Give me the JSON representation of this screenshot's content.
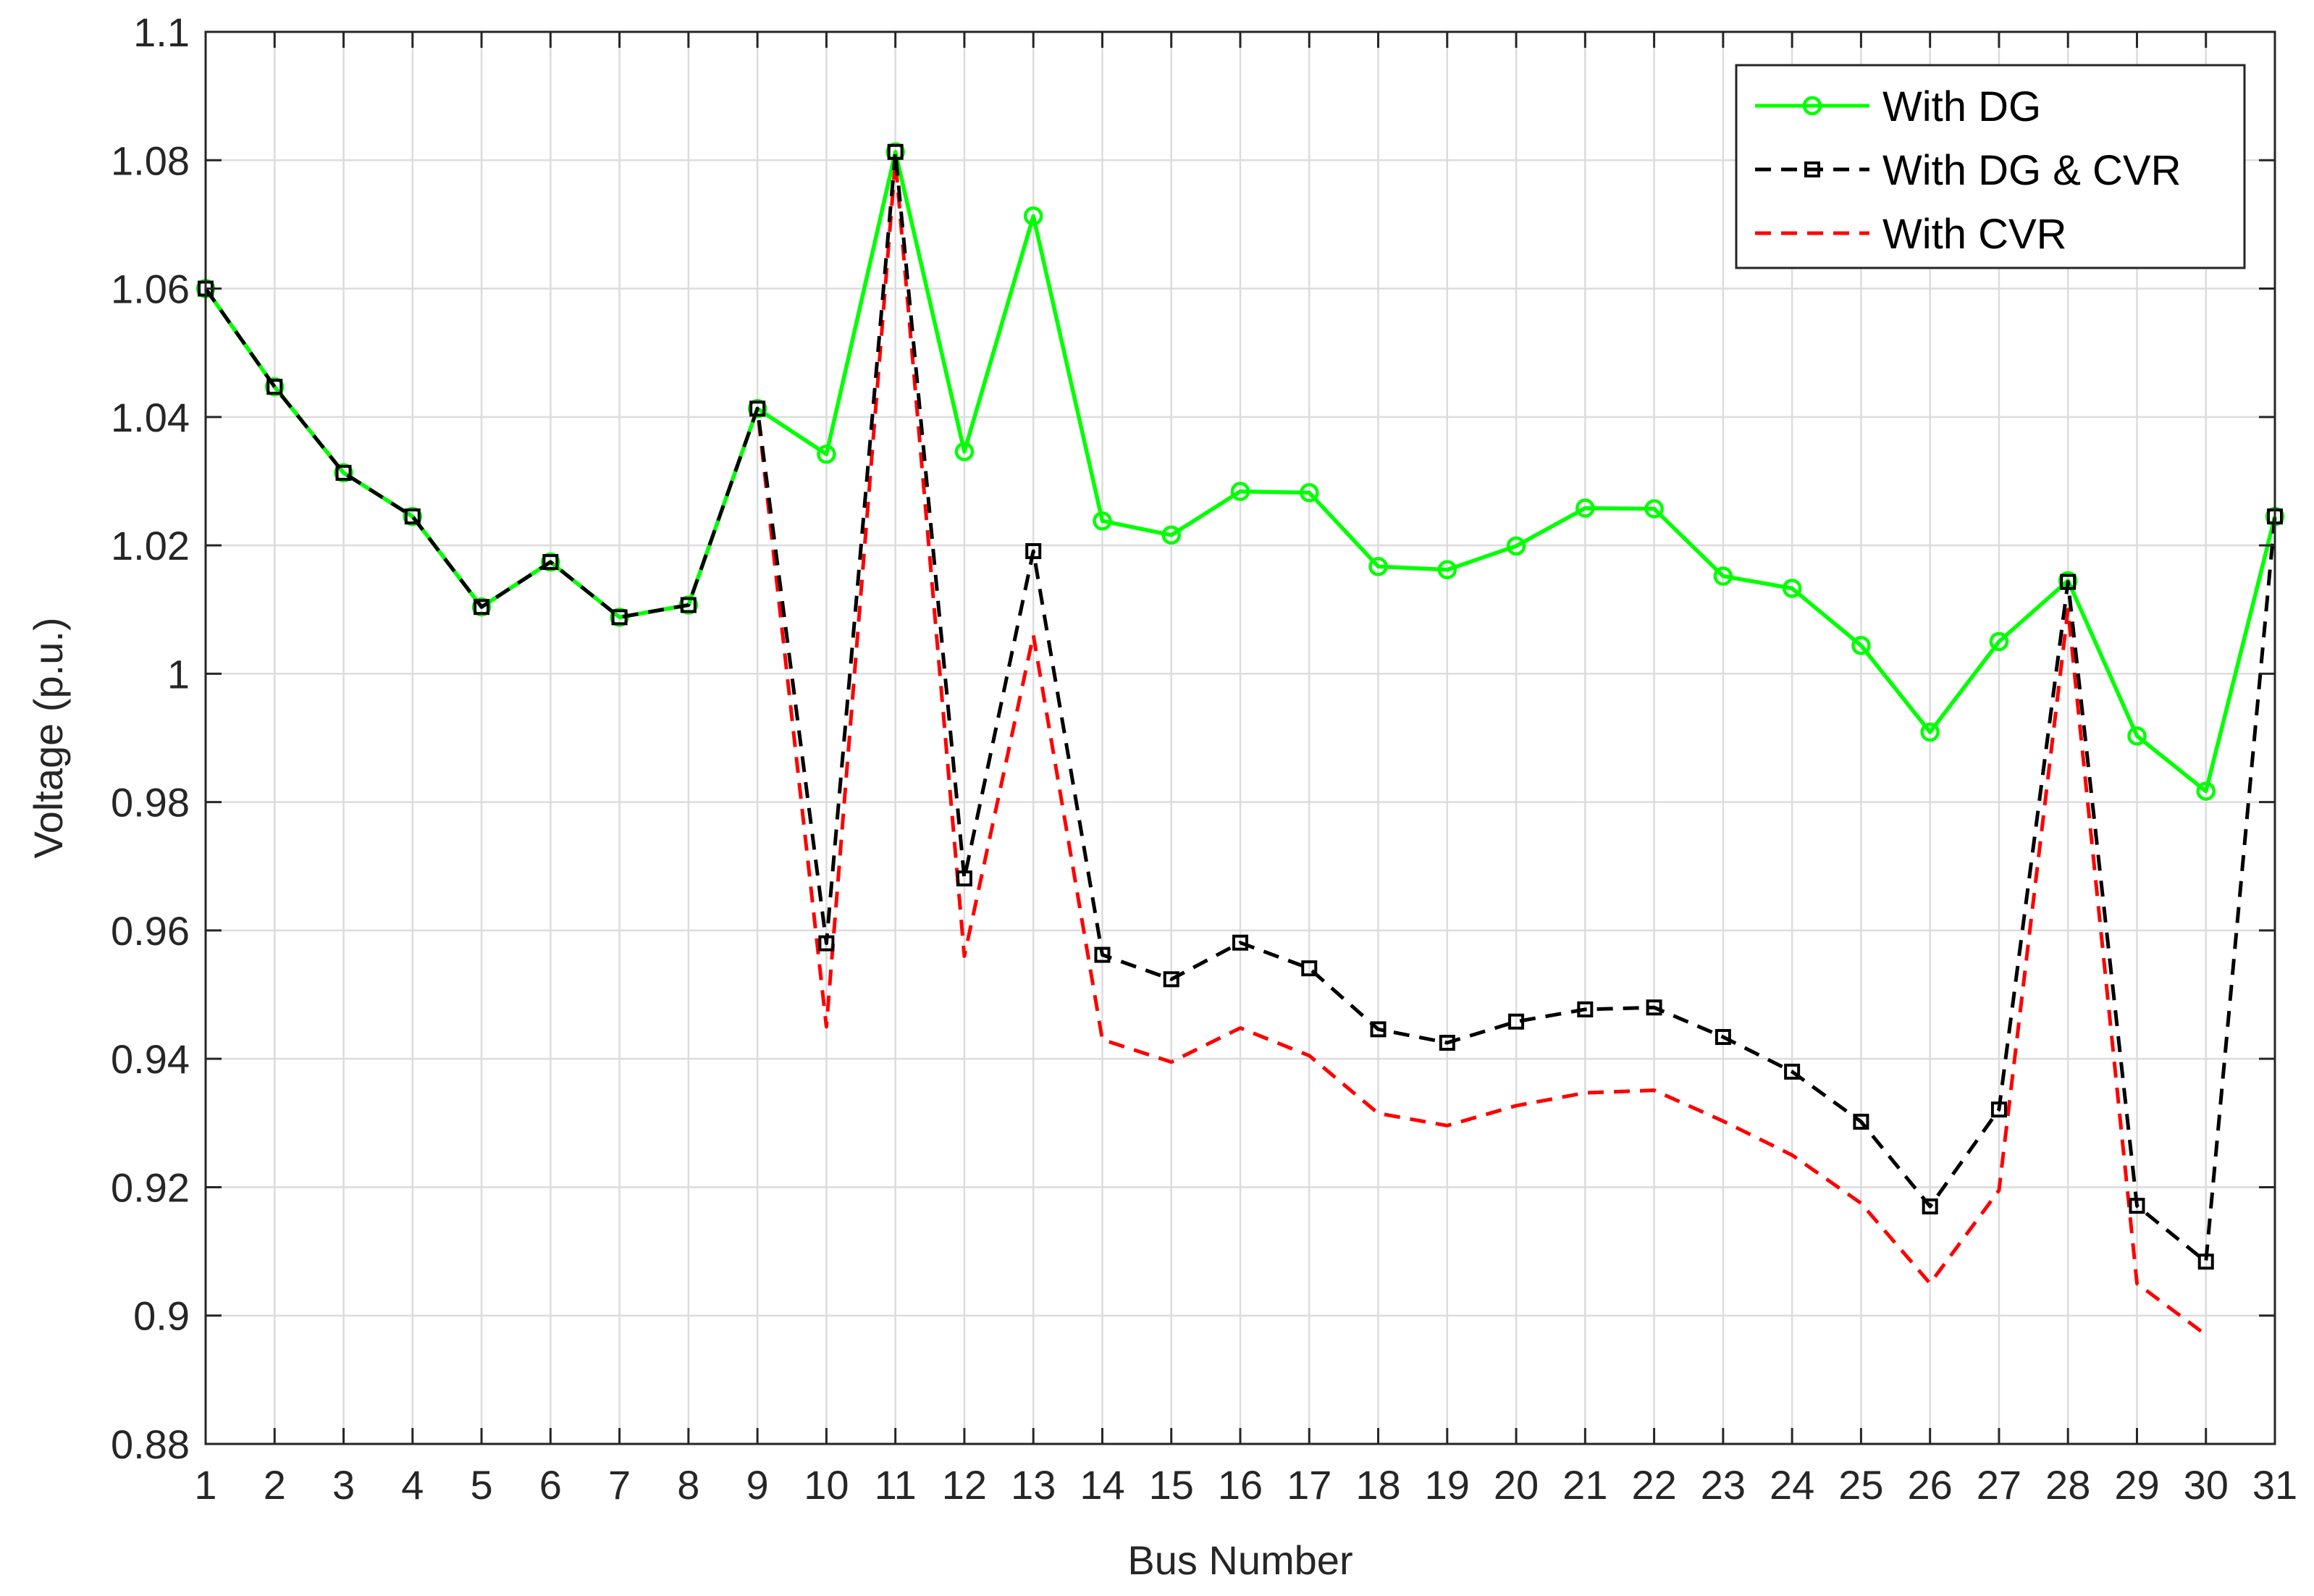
{
  "chart_data": {
    "type": "line",
    "title": "",
    "xlabel": "Bus Number",
    "ylabel": "Voltage (p.u.)",
    "x": [
      1,
      2,
      3,
      4,
      5,
      6,
      7,
      8,
      9,
      10,
      11,
      12,
      13,
      14,
      15,
      16,
      17,
      18,
      19,
      20,
      21,
      22,
      23,
      24,
      25,
      26,
      27,
      28,
      29,
      30,
      31
    ],
    "xlim": [
      1,
      31
    ],
    "ylim": [
      0.88,
      1.1
    ],
    "xticks": [
      "1",
      "2",
      "3",
      "4",
      "5",
      "6",
      "7",
      "8",
      "9",
      "10",
      "11",
      "12",
      "13",
      "14",
      "15",
      "16",
      "17",
      "18",
      "19",
      "20",
      "21",
      "22",
      "23",
      "24",
      "25",
      "26",
      "27",
      "28",
      "29",
      "30",
      "31"
    ],
    "yticks": [
      "0.88",
      "0.9",
      "0.92",
      "0.94",
      "0.96",
      "0.98",
      "1",
      "1.02",
      "1.04",
      "1.06",
      "1.08",
      "1.1"
    ],
    "yticks_values": [
      0.88,
      0.9,
      0.92,
      0.94,
      0.96,
      0.98,
      1.0,
      1.02,
      1.04,
      1.06,
      1.08,
      1.1
    ],
    "grid": true,
    "legend_position": "top-right",
    "series": [
      {
        "name": "With DG",
        "color": "#00ff00",
        "line_style": "solid",
        "marker": "circle",
        "values": [
          1.06,
          1.0447,
          1.0313,
          1.0245,
          1.0104,
          1.0174,
          1.0088,
          1.0107,
          1.0413,
          1.0342,
          1.0813,
          1.0346,
          1.0713,
          1.0238,
          1.0216,
          1.0284,
          1.0282,
          1.0167,
          1.0162,
          1.0199,
          1.0258,
          1.0257,
          1.0152,
          1.0133,
          1.0044,
          0.9909,
          1.005,
          1.0145,
          0.9903,
          0.9817,
          1.0245
        ]
      },
      {
        "name": "With DG & CVR",
        "color": "#000000",
        "line_style": "dashed",
        "marker": "square",
        "values": [
          1.06,
          1.0447,
          1.0313,
          1.0245,
          1.0104,
          1.0174,
          1.0088,
          1.0107,
          1.0413,
          0.958,
          1.0813,
          0.9681,
          1.0191,
          0.9562,
          0.9524,
          0.9581,
          0.9541,
          0.9446,
          0.9425,
          0.9458,
          0.9477,
          0.948,
          0.9434,
          0.938,
          0.9302,
          0.917,
          0.9321,
          1.0143,
          0.9171,
          0.9084,
          1.0245
        ]
      },
      {
        "name": "With CVR",
        "color": "#ff0000",
        "line_style": "dashed",
        "marker": "none",
        "values": [
          1.06,
          1.0447,
          1.0313,
          1.0245,
          1.0104,
          1.0174,
          1.0088,
          1.0107,
          1.0413,
          0.945,
          1.08,
          0.956,
          1.006,
          0.943,
          0.9395,
          0.9448,
          0.9405,
          0.9315,
          0.9296,
          0.9327,
          0.9347,
          0.9351,
          0.9303,
          0.925,
          0.9175,
          0.905,
          0.9195,
          1.01,
          0.905,
          0.897,
          null
        ]
      }
    ]
  }
}
